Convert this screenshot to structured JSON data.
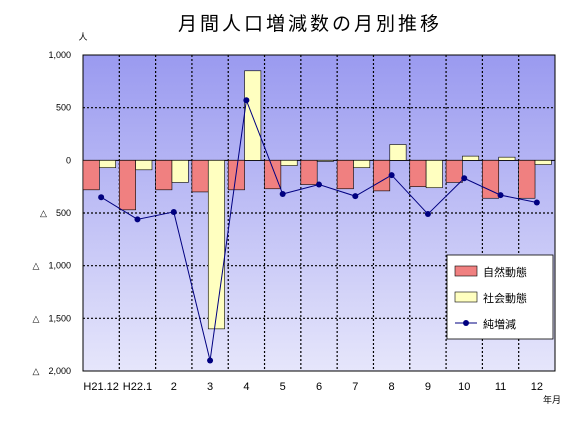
{
  "chart_data": {
    "type": "bar",
    "title": "月間人口増減数の月別推移",
    "y_unit_label": "人",
    "x_unit_label": "年月",
    "categories": [
      "H21.12",
      "H22.1",
      "2",
      "3",
      "4",
      "5",
      "6",
      "7",
      "8",
      "9",
      "10",
      "11",
      "12"
    ],
    "y_ticks": [
      {
        "value": 1000,
        "label": "1,000"
      },
      {
        "value": 500,
        "label": "500"
      },
      {
        "value": 0,
        "label": "0"
      },
      {
        "value": -500,
        "label": "△　500"
      },
      {
        "value": -1000,
        "label": "△　1,000"
      },
      {
        "value": -1500,
        "label": "△　1,500"
      },
      {
        "value": -2000,
        "label": "△　2,000"
      }
    ],
    "ylim": [
      -2000,
      1000
    ],
    "grid": true,
    "legend_position": "bottom-right",
    "series": [
      {
        "name": "自然動態",
        "kind": "bar",
        "color": "#f08080",
        "values": [
          -280,
          -470,
          -280,
          -300,
          -280,
          -270,
          -230,
          -270,
          -290,
          -250,
          -210,
          -360,
          -360
        ]
      },
      {
        "name": "社会動態",
        "kind": "bar",
        "color": "#ffffc0",
        "values": [
          -70,
          -90,
          -210,
          -1600,
          850,
          -50,
          -10,
          -70,
          150,
          -260,
          40,
          30,
          -40
        ]
      },
      {
        "name": "純増減",
        "kind": "line",
        "color": "#000080",
        "values": [
          -350,
          -560,
          -490,
          -1900,
          570,
          -320,
          -230,
          -340,
          -140,
          -510,
          -170,
          -330,
          -400
        ]
      }
    ]
  }
}
